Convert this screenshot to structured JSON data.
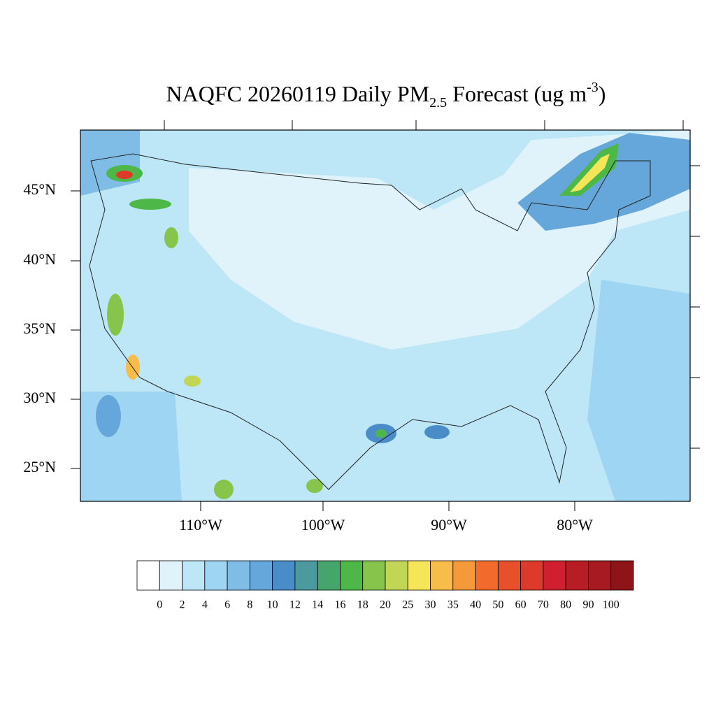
{
  "title": {
    "main": "NAQFC 20260119 Daily PM",
    "sub": "2.5",
    "rest": " Forecast (ug m",
    "sup": "-3",
    "end": ")"
  },
  "lat_labels": [
    "45°N",
    "40°N",
    "35°N",
    "30°N",
    "25°N"
  ],
  "lon_labels": [
    "110°W",
    "100°W",
    "90°W",
    "80°W"
  ],
  "colorbar": {
    "levels": [
      0,
      2,
      4,
      6,
      8,
      10,
      12,
      14,
      16,
      18,
      20,
      25,
      30,
      35,
      40,
      50,
      60,
      70,
      80,
      90,
      100
    ],
    "colors": [
      "#ffffff",
      "#e0f3fa",
      "#bde6f6",
      "#9dd5f2",
      "#80bde6",
      "#65a7da",
      "#4a8cc8",
      "#4a9a9e",
      "#46a56c",
      "#4db848",
      "#86c44c",
      "#c2d655",
      "#f5e659",
      "#f7bd4b",
      "#f59a3a",
      "#f26a2c",
      "#e8502b",
      "#dc3a2b",
      "#d02030",
      "#b81d26",
      "#a81a22",
      "#8d1519"
    ]
  }
}
